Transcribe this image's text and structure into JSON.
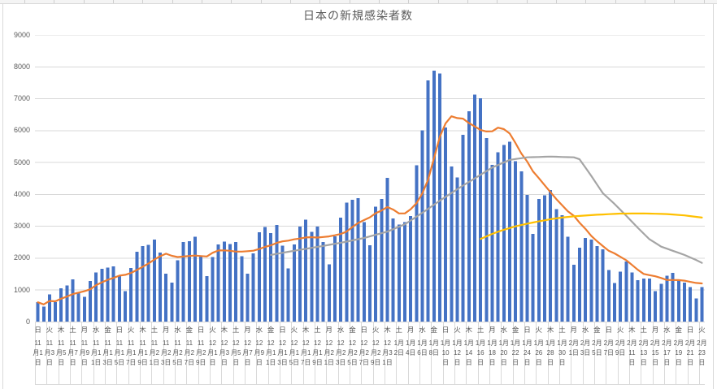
{
  "title": "日本の新規感染者数",
  "colors": {
    "bar": "#4472C4",
    "orange_line": "#ED7D31",
    "gray_line": "#A5A5A5",
    "yellow_line": "#FFC000",
    "grid": "#D9D9D9",
    "text": "#595959"
  },
  "y_axis": {
    "min": 0,
    "max": 9000,
    "ticks": [
      0,
      1000,
      2000,
      3000,
      4000,
      5000,
      6000,
      7000,
      8000,
      9000
    ]
  },
  "x_axis": {
    "weekday_chars": [
      "日",
      "月",
      "火",
      "水",
      "木",
      "金",
      "土"
    ],
    "first_day_weekday_index": 0,
    "months": [
      {
        "month": 11,
        "days": 30
      },
      {
        "month": 12,
        "days": 31
      },
      {
        "month": 1,
        "days": 31
      },
      {
        "month": 2,
        "days": 23
      }
    ],
    "label_every_n_days": 2,
    "first_label": "日 11月1日",
    "last_label": "火 2月23日"
  },
  "chart_data": {
    "type": "bar",
    "title": "日本の新規感染者数",
    "xlabel": "",
    "ylabel": "",
    "ylim": [
      0,
      9000
    ],
    "grid": true,
    "legend": "none",
    "n_days": 115,
    "date_range": "11月1日〜2月23日",
    "series": [
      {
        "name": "daily_new_cases_bars",
        "type": "bar",
        "color": "#4472C4",
        "values": [
          614,
          480,
          867,
          620,
          1048,
          1141,
          1331,
          938,
          780,
          1284,
          1543,
          1661,
          1704,
          1737,
          1440,
          960,
          1690,
          2201,
          2382,
          2415,
          2586,
          2168,
          1515,
          1229,
          1930,
          2501,
          2527,
          2674,
          2063,
          1438,
          2030,
          2434,
          2518,
          2442,
          2508,
          2058,
          1515,
          2152,
          2811,
          2972,
          2790,
          3041,
          2388,
          1680,
          2432,
          2994,
          3211,
          2829,
          2982,
          2501,
          1806,
          2688,
          3271,
          3742,
          3832,
          3881,
          3127,
          2403,
          3607,
          3852,
          4520,
          3246,
          3058,
          3127,
          3325,
          4915,
          6004,
          7570,
          7882,
          7790,
          6093,
          4876,
          4527,
          5870,
          6610,
          7133,
          7014,
          5759,
          4925,
          5320,
          5549,
          5653,
          5045,
          4717,
          3988,
          2764,
          3853,
          3971,
          4133,
          3539,
          3344,
          2673,
          1791,
          2324,
          2631,
          2576,
          2372,
          2279,
          1631,
          1216,
          1570,
          1887,
          1548,
          1304,
          1362,
          1364,
          965,
          1194,
          1448,
          1538,
          1301,
          1234,
          1088,
          740,
          1087
        ]
      },
      {
        "name": "orange_line_7day_mean",
        "type": "line",
        "color": "#ED7D31",
        "derived_from": "daily_new_cases_bars",
        "window": 7
      },
      {
        "name": "gray_line",
        "type": "line",
        "color": "#A5A5A5",
        "anchors": [
          [
            40,
            2100
          ],
          [
            44,
            2230
          ],
          [
            48,
            2350
          ],
          [
            52,
            2480
          ],
          [
            56,
            2630
          ],
          [
            60,
            2830
          ],
          [
            63,
            3060
          ],
          [
            66,
            3420
          ],
          [
            69,
            3800
          ],
          [
            72,
            4160
          ],
          [
            75,
            4500
          ],
          [
            78,
            4840
          ],
          [
            81,
            5080
          ],
          [
            84,
            5160
          ],
          [
            88,
            5185
          ],
          [
            92,
            5160
          ],
          [
            93,
            5100
          ],
          [
            95,
            4580
          ],
          [
            97,
            4035
          ],
          [
            99,
            3700
          ],
          [
            101,
            3330
          ],
          [
            103,
            2950
          ],
          [
            105,
            2590
          ],
          [
            107,
            2360
          ],
          [
            109,
            2230
          ],
          [
            111,
            2100
          ],
          [
            113,
            1940
          ],
          [
            114,
            1850
          ]
        ]
      },
      {
        "name": "yellow_line",
        "type": "line",
        "color": "#FFC000",
        "anchors": [
          [
            76,
            2600
          ],
          [
            78,
            2760
          ],
          [
            80,
            2890
          ],
          [
            82,
            2995
          ],
          [
            84,
            3080
          ],
          [
            86,
            3150
          ],
          [
            88,
            3220
          ],
          [
            90,
            3270
          ],
          [
            92,
            3310
          ],
          [
            96,
            3360
          ],
          [
            100,
            3395
          ],
          [
            104,
            3400
          ],
          [
            108,
            3380
          ],
          [
            111,
            3340
          ],
          [
            114,
            3270
          ]
        ]
      }
    ]
  }
}
